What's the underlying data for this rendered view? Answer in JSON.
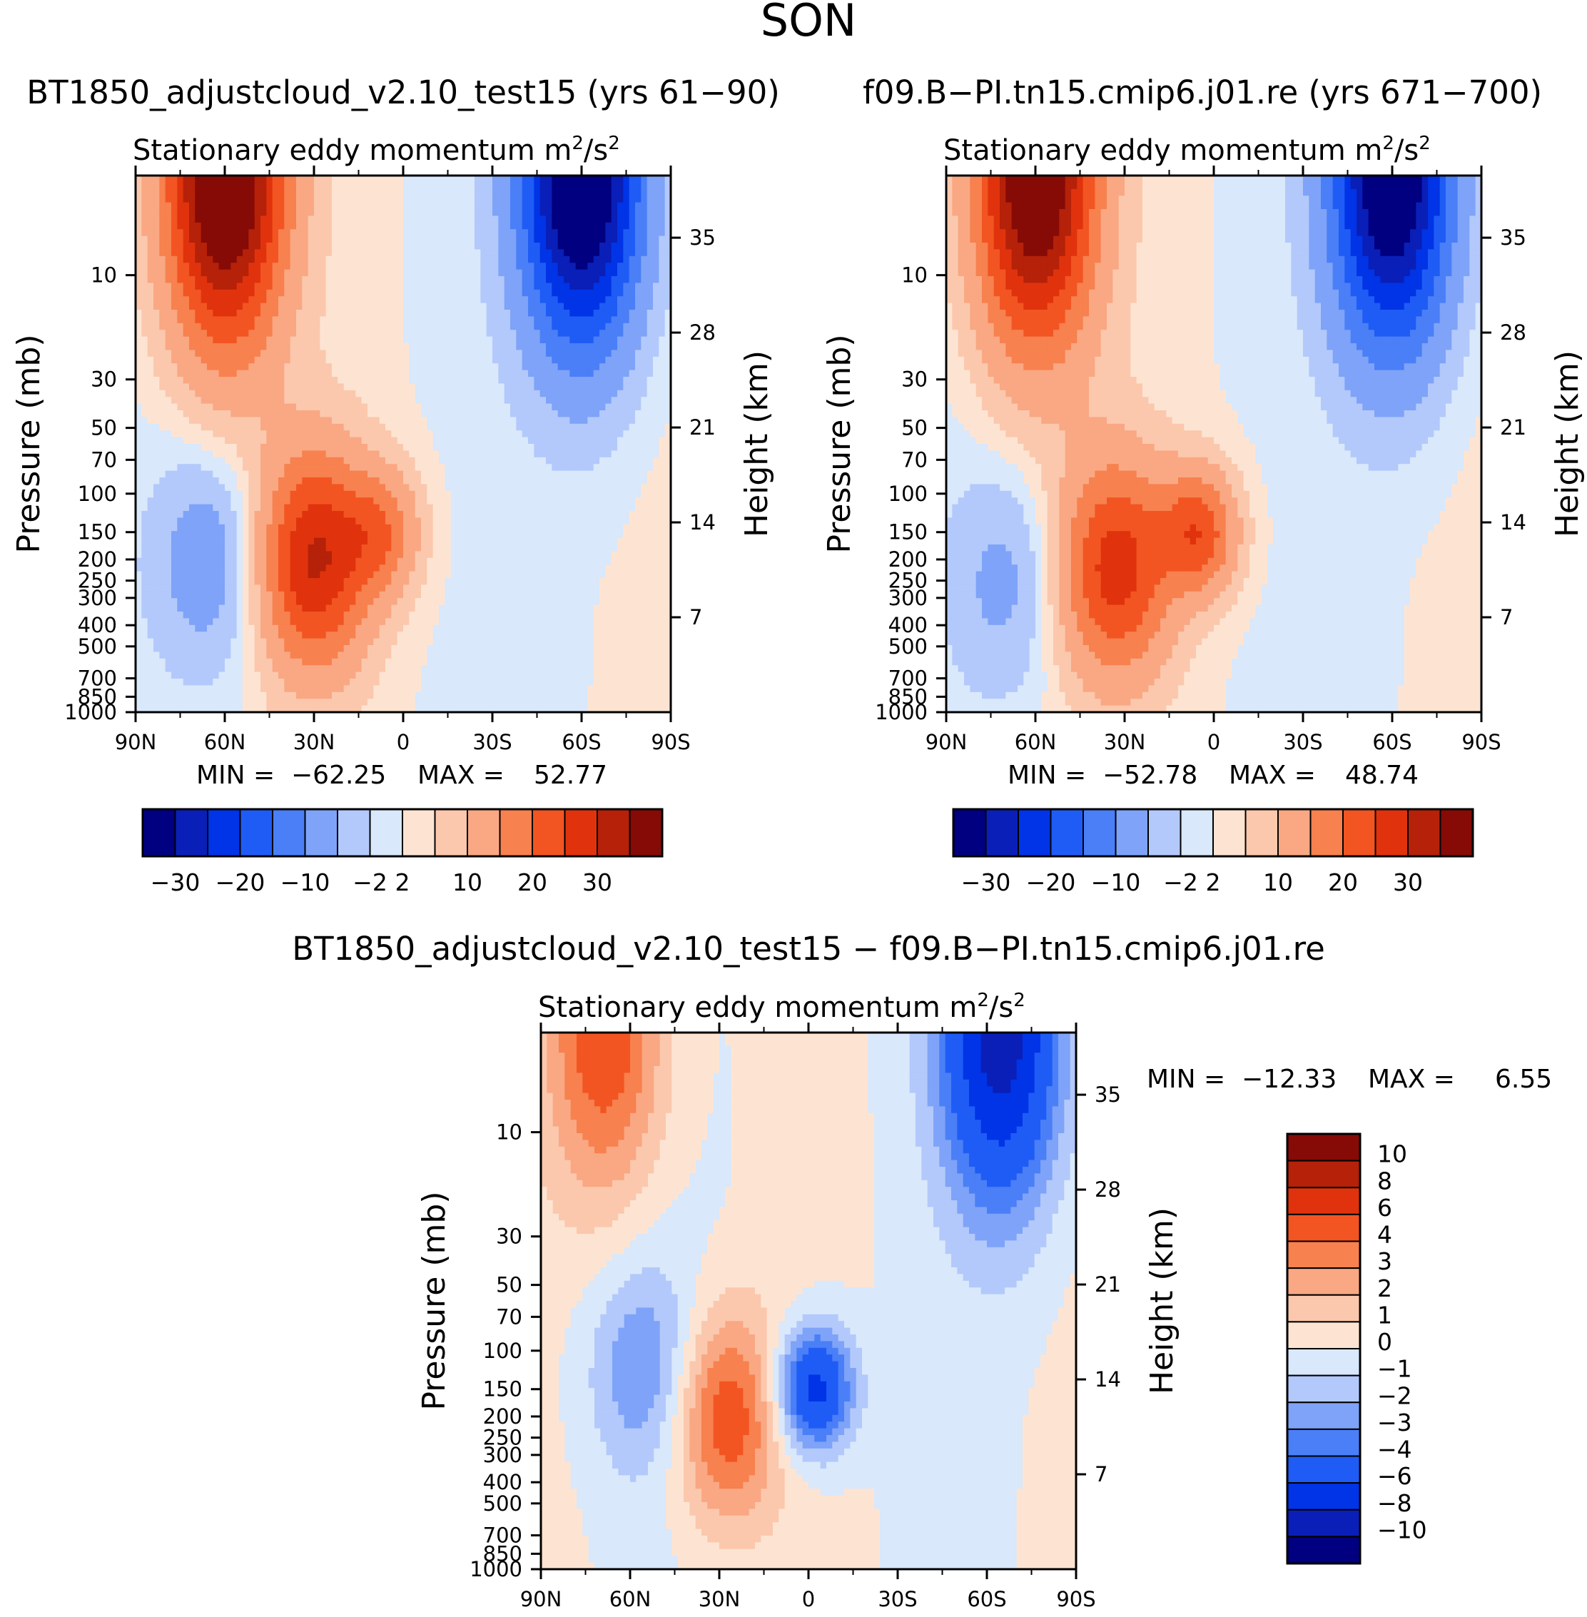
{
  "figure": {
    "season": "SON",
    "panels": [
      {
        "id": "left",
        "case_title": "BT1850_adjustcloud_v2.10_test15 (yrs 61−90)",
        "plot_title": "Stationary eddy momentum",
        "units_base": "m",
        "units_exp": "2",
        "units_slash": "/s",
        "units_exp2": "2",
        "min_label": "MIN =",
        "min_value": "−62.25",
        "max_label": "MAX =",
        "max_value": "52.77"
      },
      {
        "id": "right",
        "case_title": "f09.B−PI.tn15.cmip6.j01.re (yrs 671−700)",
        "plot_title": "Stationary eddy momentum",
        "units_base": "m",
        "units_exp": "2",
        "units_slash": "/s",
        "units_exp2": "2",
        "min_label": "MIN =",
        "min_value": "−52.78",
        "max_label": "MAX =",
        "max_value": "48.74"
      },
      {
        "id": "diff",
        "case_title": "BT1850_adjustcloud_v2.10_test15 − f09.B−PI.tn15.cmip6.j01.re",
        "plot_title": "Stationary eddy momentum",
        "units_base": "m",
        "units_exp": "2",
        "units_slash": "/s",
        "units_exp2": "2",
        "min_label": "MIN =",
        "min_value": "−12.33",
        "max_label": "MAX =",
        "max_value": "6.55"
      }
    ],
    "axis_labels": {
      "left": "Pressure (mb)",
      "right": "Height (km)"
    }
  },
  "chart_data": [
    {
      "type": "heatmap",
      "panel": "left",
      "title": "Stationary eddy momentum",
      "xlabel": "",
      "ylabel": "Pressure (mb)",
      "ylabel_right": "Height (km)",
      "x_ticks": [
        "90N",
        "60N",
        "30N",
        "0",
        "30S",
        "60S",
        "90S"
      ],
      "x_values": [
        90,
        60,
        30,
        0,
        -30,
        -60,
        -90
      ],
      "y_ticks": [
        "10",
        "30",
        "50",
        "70",
        "100",
        "150",
        "200",
        "250",
        "300",
        "400",
        "500",
        "700",
        "850",
        "1000"
      ],
      "y_values": [
        10,
        30,
        50,
        70,
        100,
        150,
        200,
        250,
        300,
        400,
        500,
        700,
        850,
        1000
      ],
      "y_range": [
        3.5,
        1000
      ],
      "y_scale": "log",
      "y2_ticks": [
        "35",
        "28",
        "21",
        "14",
        "7"
      ],
      "y2_values": [
        35,
        28,
        21,
        14,
        7
      ],
      "min": -62.25,
      "max": 52.77,
      "colorbar_labels": [
        "−30",
        "−20",
        "−10",
        "−2",
        "2",
        "10",
        "20",
        "30"
      ],
      "features": [
        {
          "lat": 60,
          "p": 3.5,
          "value": 40,
          "note": "positive polar stratosphere max (NH)"
        },
        {
          "lat": -60,
          "p": 3.5,
          "value": -40,
          "note": "negative polar stratosphere min (SH)"
        },
        {
          "lat": 30,
          "p": 200,
          "value": 25,
          "note": "NH subtropical jet positive"
        },
        {
          "lat": 7,
          "p": 150,
          "value": 12,
          "note": "equatorial positive core"
        },
        {
          "lat": 65,
          "p": 200,
          "value": -8,
          "note": "NH mid-lat negative band"
        }
      ]
    },
    {
      "type": "heatmap",
      "panel": "right",
      "title": "Stationary eddy momentum",
      "xlabel": "",
      "ylabel": "Pressure (mb)",
      "ylabel_right": "Height (km)",
      "x_ticks": [
        "90N",
        "60N",
        "30N",
        "0",
        "30S",
        "60S",
        "90S"
      ],
      "x_values": [
        90,
        60,
        30,
        0,
        -30,
        -60,
        -90
      ],
      "y_ticks": [
        "10",
        "30",
        "50",
        "70",
        "100",
        "150",
        "200",
        "250",
        "300",
        "400",
        "500",
        "700",
        "850",
        "1000"
      ],
      "y_values": [
        10,
        30,
        50,
        70,
        100,
        150,
        200,
        250,
        300,
        400,
        500,
        700,
        850,
        1000
      ],
      "y_range": [
        3.5,
        1000
      ],
      "y_scale": "log",
      "y2_ticks": [
        "35",
        "28",
        "21",
        "14",
        "7"
      ],
      "y2_values": [
        35,
        28,
        21,
        14,
        7
      ],
      "min": -52.78,
      "max": 48.74,
      "colorbar_labels": [
        "−30",
        "−20",
        "−10",
        "−2",
        "2",
        "10",
        "20",
        "30"
      ],
      "features": [
        {
          "lat": 60,
          "p": 3.5,
          "value": 38,
          "note": "positive polar stratosphere max (NH)"
        },
        {
          "lat": -60,
          "p": 3.5,
          "value": -38,
          "note": "negative polar stratosphere min (SH)"
        },
        {
          "lat": 33,
          "p": 220,
          "value": 22,
          "note": "NH subtropical jet positive"
        },
        {
          "lat": 5,
          "p": 150,
          "value": 18,
          "note": "equatorial positive core"
        },
        {
          "lat": 70,
          "p": 250,
          "value": -6,
          "note": "NH mid-lat negative band"
        }
      ]
    },
    {
      "type": "heatmap",
      "panel": "diff",
      "title": "Stationary eddy momentum",
      "xlabel": "",
      "ylabel": "Pressure (mb)",
      "ylabel_right": "Height (km)",
      "x_ticks": [
        "90N",
        "60N",
        "30N",
        "0",
        "30S",
        "60S",
        "90S"
      ],
      "x_values": [
        90,
        60,
        30,
        0,
        -30,
        -60,
        -90
      ],
      "y_ticks": [
        "10",
        "30",
        "50",
        "70",
        "100",
        "150",
        "200",
        "250",
        "300",
        "400",
        "500",
        "700",
        "850",
        "1000"
      ],
      "y_values": [
        10,
        30,
        50,
        70,
        100,
        150,
        200,
        250,
        300,
        400,
        500,
        700,
        850,
        1000
      ],
      "y_range": [
        3.5,
        1000
      ],
      "y_scale": "log",
      "y2_ticks": [
        "35",
        "28",
        "21",
        "14",
        "7"
      ],
      "y2_values": [
        35,
        28,
        21,
        14,
        7
      ],
      "min": -12.33,
      "max": 6.55,
      "colorbar_labels": [
        "10",
        "8",
        "6",
        "4",
        "3",
        "2",
        "1",
        "0",
        "−1",
        "−2",
        "−3",
        "−4",
        "−6",
        "−8",
        "−10"
      ],
      "features": [
        {
          "lat": 68,
          "p": 3.5,
          "value": 5,
          "note": "positive NH polar stratosphere"
        },
        {
          "lat": -65,
          "p": 3.5,
          "value": -9,
          "note": "negative SH polar stratosphere"
        },
        {
          "lat": 55,
          "p": 120,
          "value": -3,
          "note": "NH mid-lat negative band"
        },
        {
          "lat": 28,
          "p": 200,
          "value": 5,
          "note": "NH subtropical positive"
        },
        {
          "lat": -2,
          "p": 150,
          "value": -7,
          "note": "equatorial negative core"
        }
      ]
    }
  ],
  "palettes": {
    "main": [
      "#000080",
      "#0a1fb8",
      "#0034e6",
      "#1f5cf5",
      "#4a7ff7",
      "#7ea3f8",
      "#b3c9fb",
      "#d9e8fb",
      "#fde4d2",
      "#fbc8ad",
      "#f9a883",
      "#f7814f",
      "#f25522",
      "#e0330d",
      "#b52109",
      "#860a06"
    ],
    "diff": [
      "#000080",
      "#0a1fb8",
      "#0034e6",
      "#1f5cf5",
      "#4a7ff7",
      "#7ea3f8",
      "#b3c9fb",
      "#d9e8fb",
      "#fde4d2",
      "#fbc8ad",
      "#f9a883",
      "#f7814f",
      "#f25522",
      "#e0330d",
      "#b52109",
      "#860a06"
    ]
  }
}
